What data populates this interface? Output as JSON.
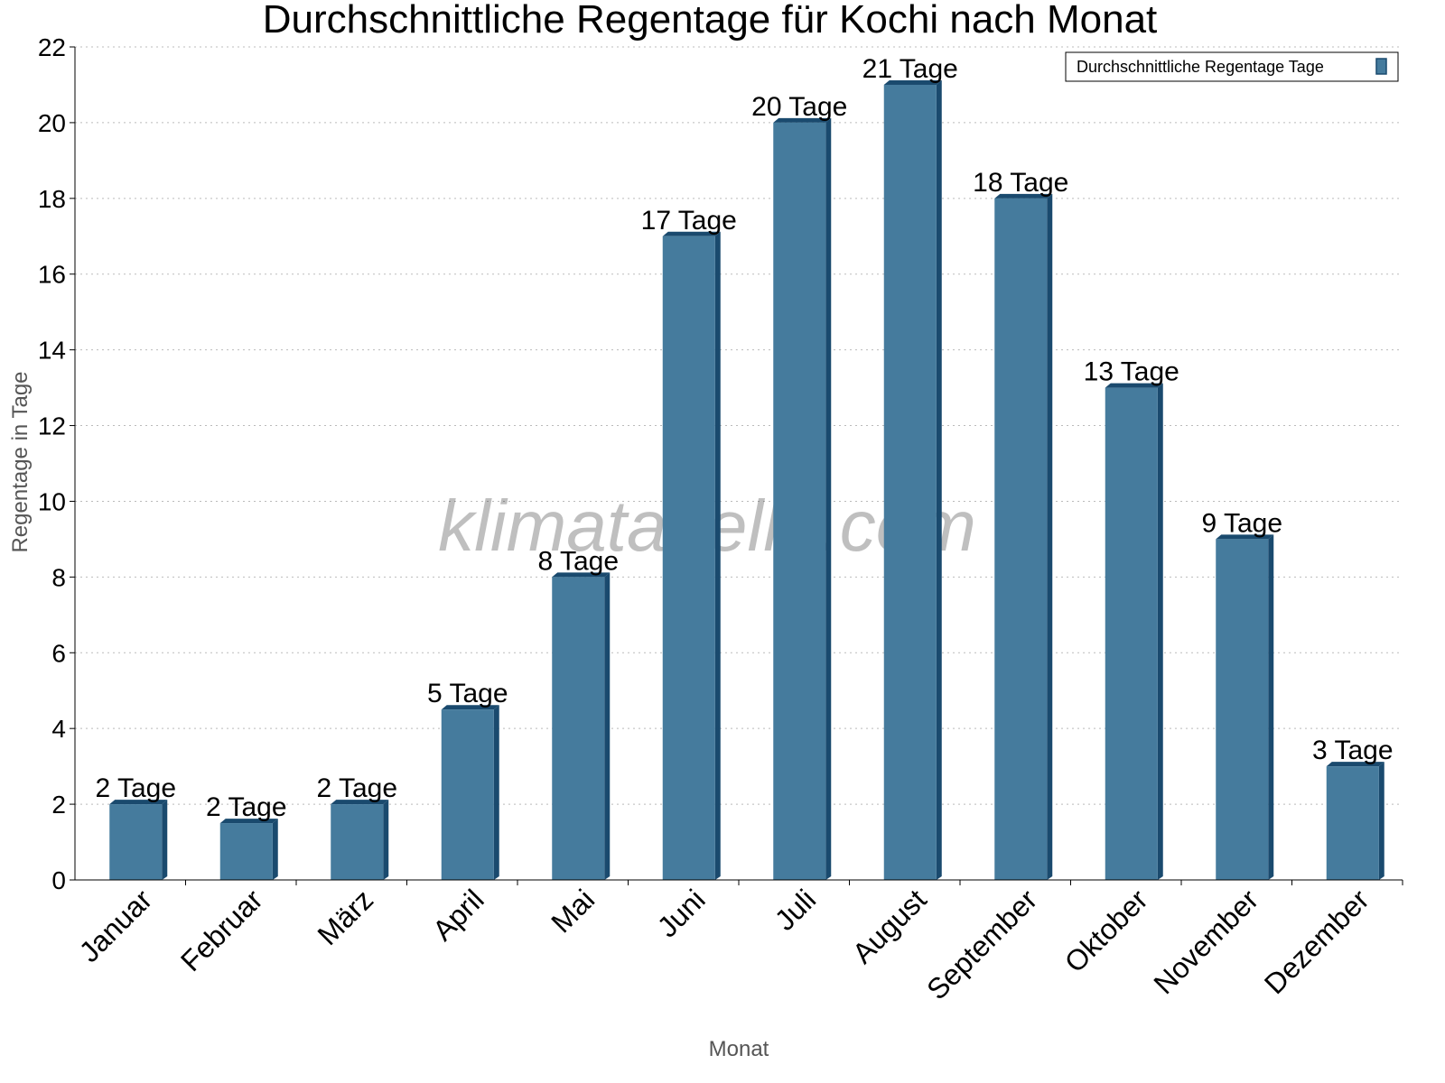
{
  "chart_data": {
    "type": "bar",
    "title": "Durchschnittliche Regentage für Kochi nach Monat",
    "xlabel": "Monat",
    "ylabel": "Regentage in Tage",
    "ylim": [
      0,
      22
    ],
    "yticks": [
      0,
      2,
      4,
      6,
      8,
      10,
      12,
      14,
      16,
      18,
      20,
      22
    ],
    "grid": true,
    "legend_position": "top-right",
    "categories": [
      "Januar",
      "Februar",
      "März",
      "April",
      "Mai",
      "Juni",
      "Juli",
      "August",
      "September",
      "Oktober",
      "November",
      "Dezember"
    ],
    "series": [
      {
        "name": "Durchschnittliche Regentage Tage",
        "values": [
          2,
          1.5,
          2,
          4.5,
          8,
          17,
          20,
          21,
          18,
          13,
          9,
          3
        ],
        "labels": [
          "2 Tage",
          "2 Tage",
          "2 Tage",
          "5 Tage",
          "8 Tage",
          "17 Tage",
          "20 Tage",
          "21 Tage",
          "18 Tage",
          "13 Tage",
          "9 Tage",
          "3 Tage"
        ]
      }
    ],
    "colors": {
      "bar": "#457b9d",
      "bar_shade": "#1a4a6e"
    },
    "watermark": "klimatabelle.com"
  }
}
